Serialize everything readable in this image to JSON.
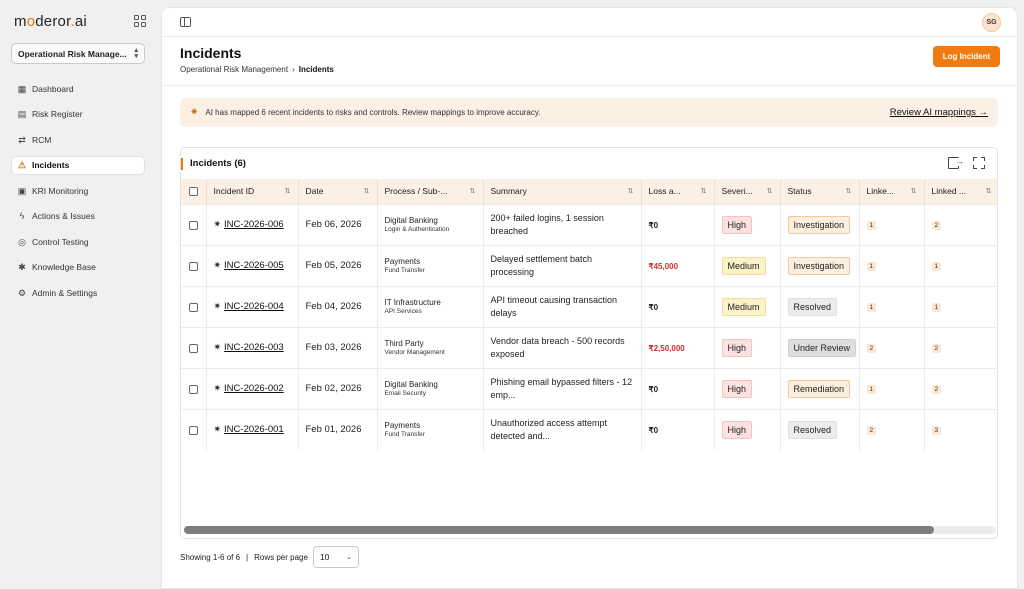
{
  "app": {
    "logo_prefix": "m",
    "logo_o": "o",
    "logo_mid": "deror",
    "logo_dot": ".",
    "logo_ai": "ai",
    "module": "Operational Risk Manage...",
    "accent_color": "#f07b12"
  },
  "sidebar": {
    "items": [
      {
        "label": "Dashboard",
        "icon": "dashboard-icon",
        "glyph": "▦"
      },
      {
        "label": "Risk Register",
        "icon": "register-icon",
        "glyph": "▤"
      },
      {
        "label": "RCM",
        "icon": "rcm-icon",
        "glyph": "⇄"
      },
      {
        "label": "Incidents",
        "icon": "warning-icon",
        "glyph": "⚠"
      },
      {
        "label": "KRI Monitoring",
        "icon": "kri-icon",
        "glyph": "▣"
      },
      {
        "label": "Actions & Issues",
        "icon": "bolt-icon",
        "glyph": "ϟ"
      },
      {
        "label": "Control Testing",
        "icon": "control-testing-icon",
        "glyph": "◎"
      },
      {
        "label": "Knowledge Base",
        "icon": "knowledge-icon",
        "glyph": "✱"
      },
      {
        "label": "Admin & Settings",
        "icon": "admin-icon",
        "glyph": "⚙"
      }
    ],
    "active_index": 3
  },
  "topbar": {
    "avatar": "SG"
  },
  "header": {
    "title": "Incidents",
    "breadcrumb_root": "Operational Risk Management",
    "breadcrumb_sep": "›",
    "breadcrumb_current": "Incidents",
    "log_button": "Log Incident"
  },
  "banner": {
    "message": "AI has mapped 6 recent incidents to risks and controls. Review mappings to improve accuracy.",
    "link": "Review AI mappings →"
  },
  "table": {
    "title": "Incidents (6)",
    "columns": [
      "Incident ID",
      "Date",
      "Process / Sub-...",
      "Summary",
      "Loss a...",
      "Severi...",
      "Status",
      "Linke...",
      "Linked ..."
    ],
    "rows": [
      {
        "id": "INC-2026-006",
        "date": "Feb 06, 2026",
        "process": "Digital Banking",
        "subprocess": "Login & Authentication",
        "summary": "200+ failed logins, 1 session breached",
        "loss": "₹0",
        "loss_negative": false,
        "severity": "High",
        "status": "Investigation",
        "linked1": "1",
        "linked2": "2"
      },
      {
        "id": "INC-2026-005",
        "date": "Feb 05, 2026",
        "process": "Payments",
        "subprocess": "Fund Transfer",
        "summary": "Delayed settlement batch processing",
        "loss": "₹45,000",
        "loss_negative": true,
        "severity": "Medium",
        "status": "Investigation",
        "linked1": "1",
        "linked2": "1"
      },
      {
        "id": "INC-2026-004",
        "date": "Feb 04, 2026",
        "process": "IT Infrastructure",
        "subprocess": "API Services",
        "summary": "API timeout causing transaction delays",
        "loss": "₹0",
        "loss_negative": false,
        "severity": "Medium",
        "status": "Resolved",
        "linked1": "1",
        "linked2": "1"
      },
      {
        "id": "INC-2026-003",
        "date": "Feb 03, 2026",
        "process": "Third Party",
        "subprocess": "Vendor Management",
        "summary": "Vendor data breach - 500 records exposed",
        "loss": "₹2,50,000",
        "loss_negative": true,
        "severity": "High",
        "status": "Under Review",
        "linked1": "2",
        "linked2": "2"
      },
      {
        "id": "INC-2026-002",
        "date": "Feb 02, 2026",
        "process": "Digital Banking",
        "subprocess": "Email Security",
        "summary": "Phishing email bypassed filters - 12 emp...",
        "loss": "₹0",
        "loss_negative": false,
        "severity": "High",
        "status": "Remediation",
        "linked1": "1",
        "linked2": "2"
      },
      {
        "id": "INC-2026-001",
        "date": "Feb 01, 2026",
        "process": "Payments",
        "subprocess": "Fund Transfer",
        "summary": "Unauthorized access attempt detected and...",
        "loss": "₹0",
        "loss_negative": false,
        "severity": "High",
        "status": "Resolved",
        "linked1": "2",
        "linked2": "3"
      }
    ]
  },
  "footer": {
    "showing": "Showing 1-6 of 6",
    "sep": "|",
    "rows_label": "Rows per page",
    "rows_value": "10"
  }
}
